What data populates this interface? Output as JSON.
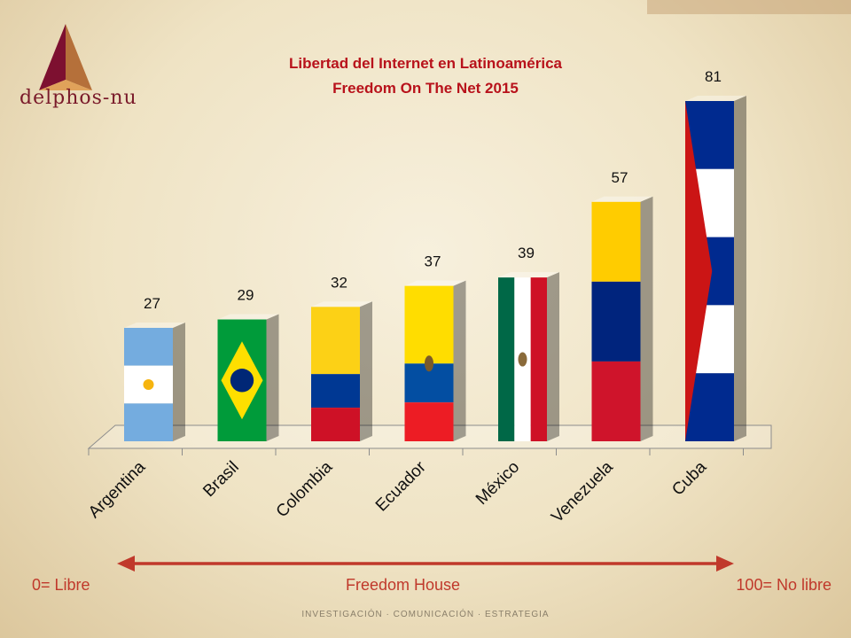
{
  "brand": {
    "logo_text": "delphos-nu",
    "tagline": "INVESTIGACIÓN · COMUNICACIÓN · ESTRATEGIA"
  },
  "colors": {
    "title": "#b8121b",
    "footer": "#c0392b",
    "arrow": "#c0392b"
  },
  "chart_data": {
    "type": "bar",
    "title": "Libertad del Internet en  Latinoamérica",
    "subtitle": "Freedom On The Net 2015",
    "categories": [
      "Argentina",
      "Brasil",
      "Colombia",
      "Ecuador",
      "México",
      "Venezuela",
      "Cuba"
    ],
    "values": [
      27,
      29,
      32,
      37,
      39,
      57,
      81
    ],
    "fills": [
      "argentina-flag",
      "brazil-flag",
      "colombia-flag",
      "ecuador-flag",
      "mexico-flag",
      "venezuela-flag",
      "cuba-flag"
    ],
    "ylim": [
      0,
      100
    ],
    "grid": false,
    "legend": "none"
  },
  "footer": {
    "left": "0= Libre",
    "center": "Freedom House",
    "right": "100= No libre"
  }
}
